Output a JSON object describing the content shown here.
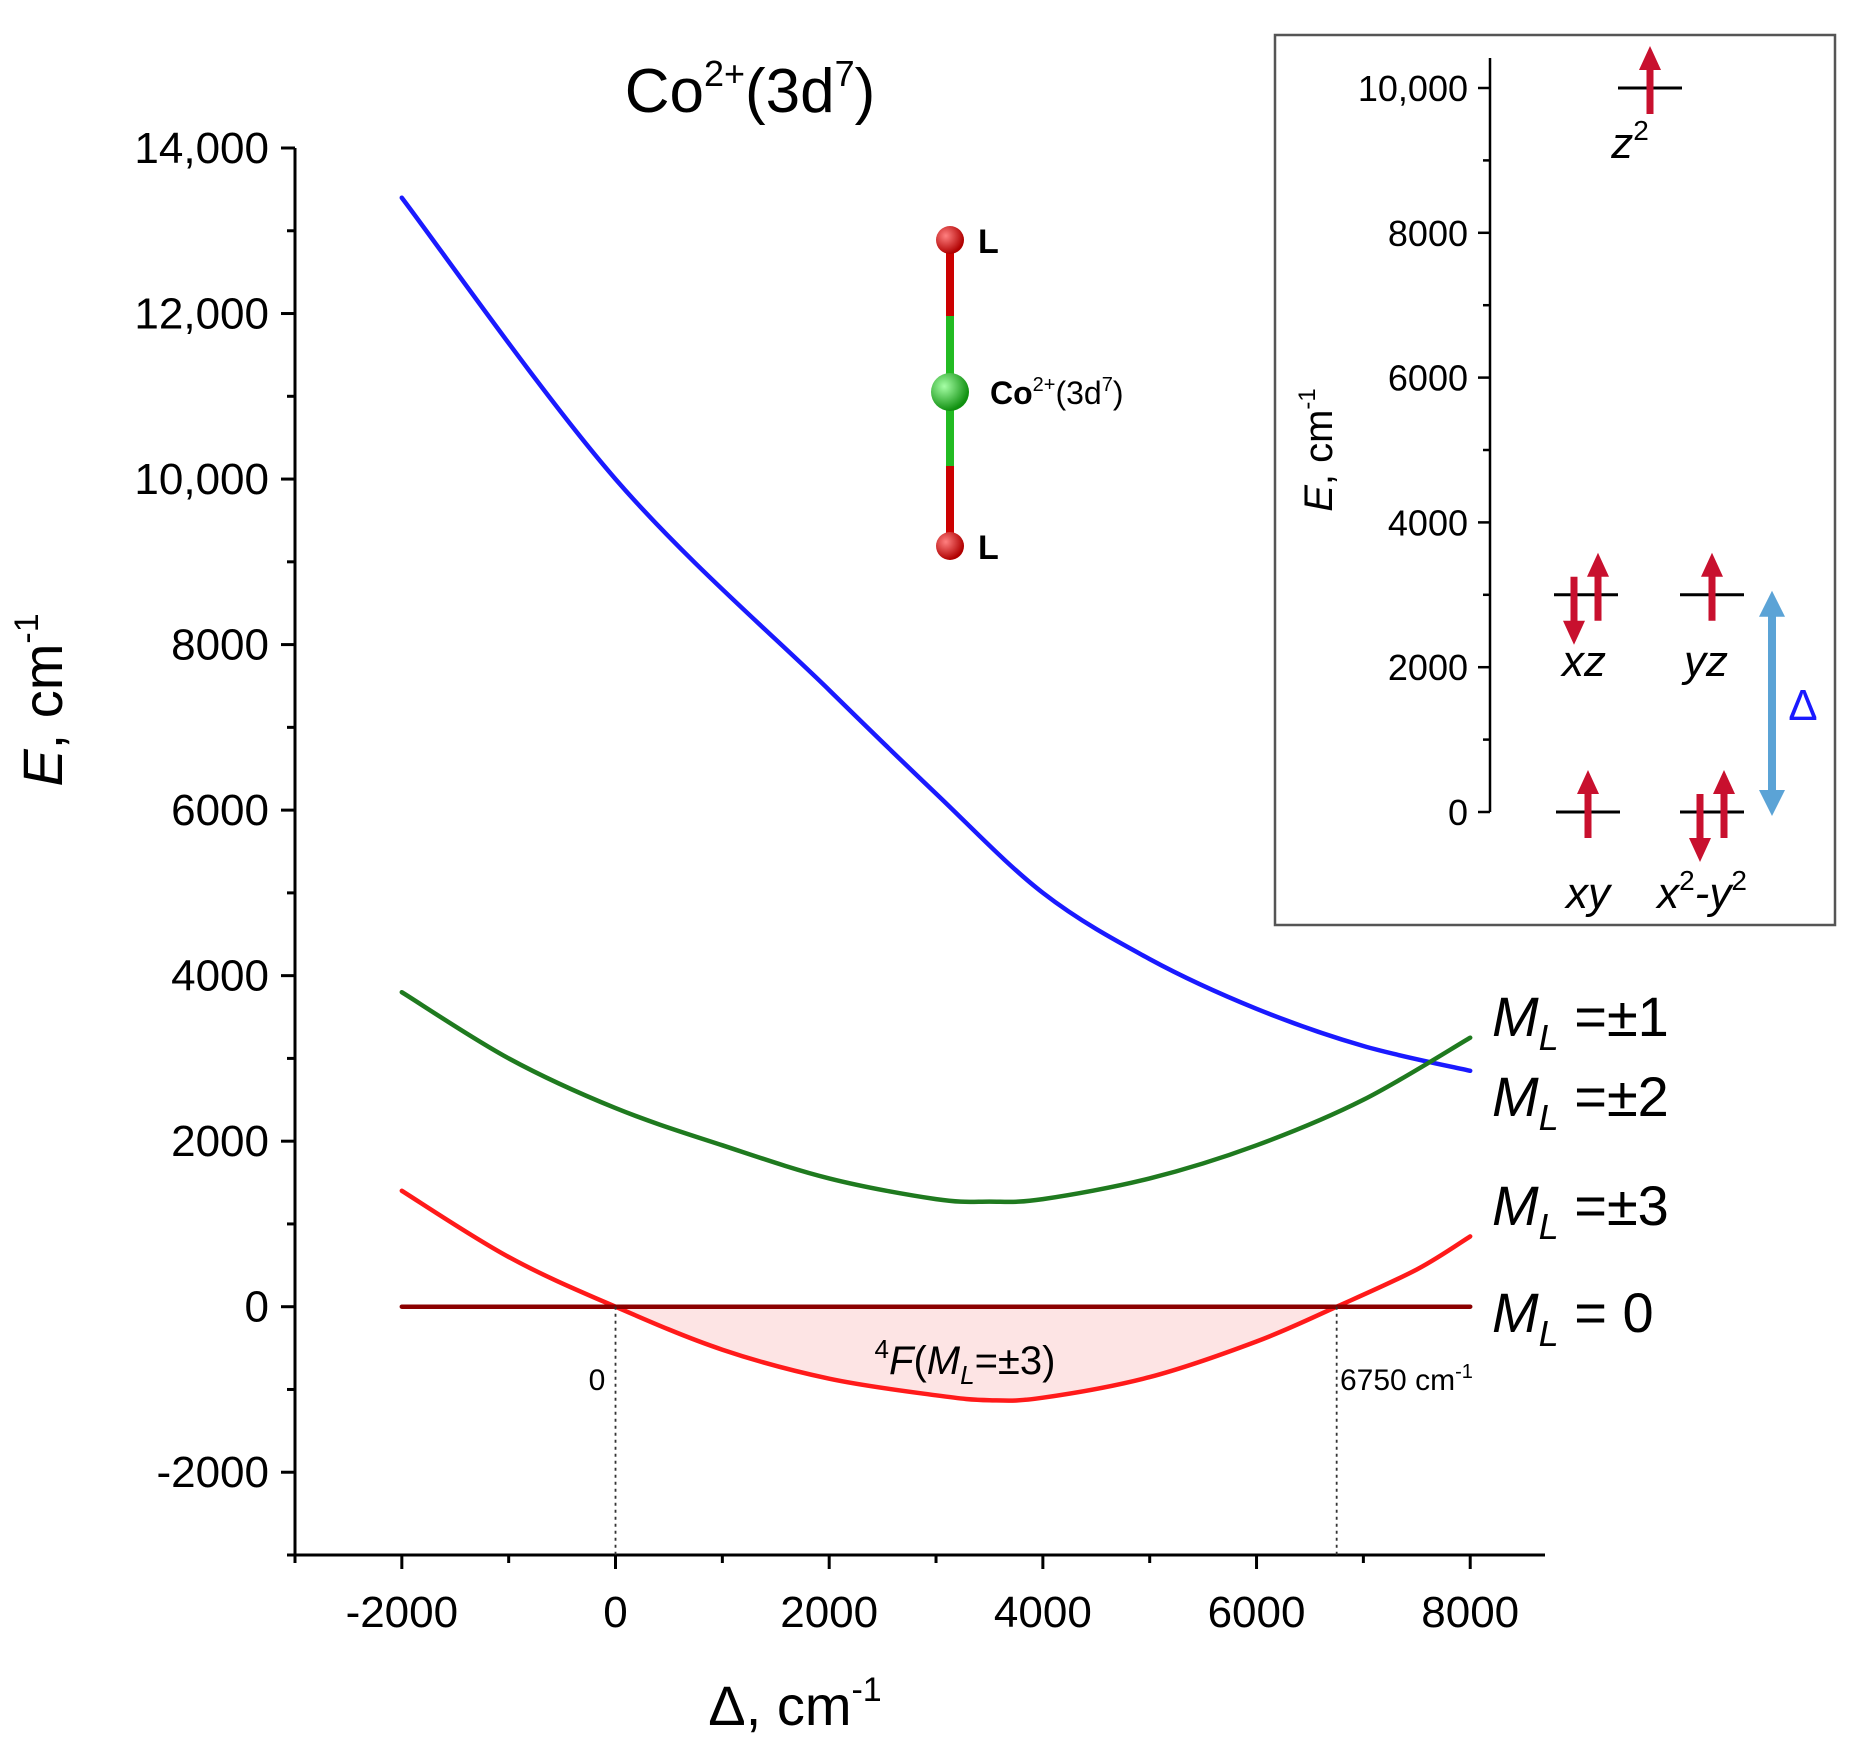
{
  "title": {
    "main": "Co",
    "sup": "2+",
    "rest": "(3d",
    "sup2": "7",
    "end": ")"
  },
  "chart_data": [
    {
      "type": "line",
      "title": "Co2+(3d7)",
      "xlabel": "Δ, cm-1",
      "ylabel": "E, cm-1",
      "xlim": [
        -3000,
        8700
      ],
      "ylim": [
        -3000,
        14000
      ],
      "x_ticks": [
        -2000,
        0,
        2000,
        4000,
        6000,
        8000
      ],
      "x_tick_labels": [
        "-2000",
        "0",
        "2000",
        "4000",
        "6000",
        "8000"
      ],
      "y_ticks": [
        -2000,
        0,
        2000,
        4000,
        6000,
        8000,
        10000,
        12000,
        14000
      ],
      "y_tick_labels": [
        "-2000",
        "0",
        "2000",
        "4000",
        "6000",
        "8000",
        "10,000",
        "12,000",
        "14,000"
      ],
      "series": [
        {
          "name": "M_L = ±1",
          "color": "#1a1aff",
          "x": [
            -2000,
            0,
            2000,
            3000,
            4000,
            5000,
            6000,
            7000,
            8000
          ],
          "y": [
            13400,
            10000,
            7450,
            6200,
            5000,
            4200,
            3600,
            3150,
            2850
          ]
        },
        {
          "name": "M_L = ±2",
          "color": "#1f7a1f",
          "x": [
            -2000,
            -1000,
            0,
            1000,
            2000,
            3000,
            3500,
            4000,
            5000,
            6000,
            7000,
            8000
          ],
          "y": [
            3800,
            3000,
            2400,
            1950,
            1550,
            1300,
            1270,
            1300,
            1550,
            1950,
            2500,
            3250
          ]
        },
        {
          "name": "M_L = ±3",
          "color": "#ff1a1a",
          "x": [
            -2000,
            -1000,
            0,
            1000,
            2000,
            3000,
            3500,
            4000,
            5000,
            6000,
            6750,
            7500,
            8000
          ],
          "y": [
            1400,
            600,
            0,
            -520,
            -870,
            -1070,
            -1130,
            -1100,
            -850,
            -420,
            0,
            450,
            850
          ]
        },
        {
          "name": "M_L = 0",
          "color": "#8b0000",
          "x": [
            -2000,
            8000
          ],
          "y": [
            0,
            0
          ]
        }
      ],
      "shaded_region": {
        "x_from": 0,
        "x_to": 6750,
        "between": [
          "M_L = 0",
          "M_L = ±3"
        ],
        "color": "#fde4e4"
      },
      "annotations": {
        "region_label": {
          "pre": "4",
          "italic1": "F",
          "paren": "(",
          "italic2": "M",
          "sub": "L",
          "post": "=±3)"
        },
        "left_cross": "0",
        "right_cross": "6750 cm",
        "right_cross_sup": "-1",
        "curve_labels": [
          {
            "name": "M",
            "sub": "L",
            "value": " =±1"
          },
          {
            "name": "M",
            "sub": "L",
            "value": " =±2"
          },
          {
            "name": "M",
            "sub": "L",
            "value": " =±3"
          },
          {
            "name": "M",
            "sub": "L",
            "value": " = 0"
          }
        ]
      },
      "molecule": {
        "ligand_top": "L",
        "ligand_bottom": "L",
        "center": "Co",
        "center_sup": "2+",
        "center_rest": "(3d",
        "center_sup2": "7",
        "center_end": ")"
      }
    },
    {
      "type": "energy-level-diagram",
      "ylabel": "E, cm-1",
      "ylim": [
        0,
        10000
      ],
      "y_ticks": [
        0,
        2000,
        4000,
        6000,
        8000,
        10000
      ],
      "y_tick_labels": [
        "0",
        "2000",
        "4000",
        "6000",
        "8000",
        "10,000"
      ],
      "orbitals": [
        {
          "label": "z",
          "sup": "2",
          "energy": 10000,
          "electrons": "up"
        },
        {
          "label": "xz",
          "energy": 3000,
          "electrons": "up-down"
        },
        {
          "label": "yz",
          "energy": 3000,
          "electrons": "up"
        },
        {
          "label": "xy",
          "energy": 0,
          "electrons": "up"
        },
        {
          "label": "x",
          "sup": "2",
          "mid": "-y",
          "sup2": "2",
          "energy": 0,
          "electrons": "up-down"
        }
      ],
      "gap_label": "Δ",
      "gap_from": 0,
      "gap_to": 3000
    }
  ],
  "axis_labels": {
    "main_y_italic": "E",
    "main_y_rest": ", cm",
    "main_y_sup": "-1",
    "main_x": "Δ, cm",
    "main_x_sup": "-1",
    "inset_y_italic": "E",
    "inset_y_rest": ", cm",
    "inset_y_sup": "-1"
  },
  "colors": {
    "blue": "#1a1aff",
    "green": "#1f7a1f",
    "red": "#ff1a1a",
    "darkred": "#8b0000",
    "arrow": "#c8102e",
    "gap_arrow": "#5ba3d6",
    "delta_text": "#1a1aff",
    "ligand": "#cc0000",
    "cobalt": "#22bb22"
  }
}
